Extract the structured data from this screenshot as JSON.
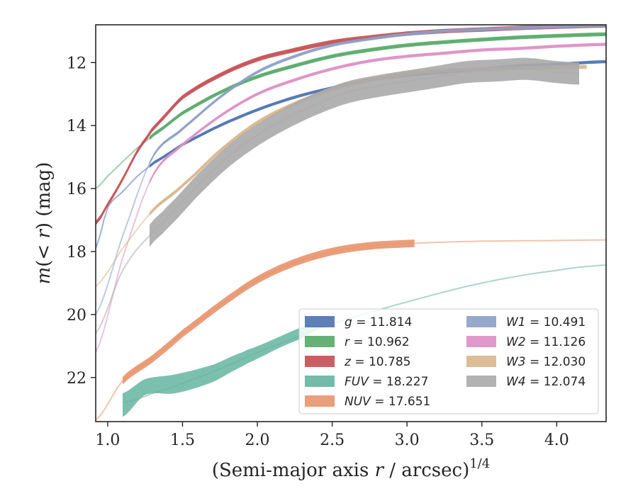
{
  "chart_data": {
    "type": "line",
    "title": "",
    "xlabel": "(Semi-major axis r / arcsec)",
    "xlabel_exponent": "1/4",
    "ylabel": "m(< r) (mag)",
    "xlim": [
      0.92,
      4.33
    ],
    "ylim": [
      23.4,
      10.8
    ],
    "y_inverted": true,
    "x_ticks": [
      1.0,
      1.5,
      2.0,
      2.5,
      3.0,
      3.5,
      4.0
    ],
    "x_tick_labels": [
      "1.0",
      "1.5",
      "2.0",
      "2.5",
      "3.0",
      "3.5",
      "4.0"
    ],
    "y_ticks": [
      12,
      14,
      16,
      18,
      20,
      22
    ],
    "y_tick_labels": [
      "12",
      "14",
      "16",
      "18",
      "20",
      "22"
    ],
    "grid": false,
    "legend_position": "lower-right",
    "legend_columns": 2,
    "series": [
      {
        "band": "g",
        "value": "11.814",
        "color": "#4c72b0",
        "data": {
          "x": [
            0.92,
            1.0,
            1.1,
            1.2,
            1.3,
            1.5,
            1.75,
            2.0,
            2.25,
            2.5,
            2.75,
            3.0,
            3.25,
            3.5,
            3.75,
            4.0,
            4.33
          ],
          "y": [
            17.9,
            16.6,
            16.1,
            15.6,
            15.2,
            14.6,
            14.0,
            13.5,
            13.1,
            12.8,
            12.55,
            12.4,
            12.3,
            12.2,
            12.1,
            12.05,
            11.97
          ]
        },
        "band_range": [
          1.28,
          4.33
        ],
        "band_width": 0.05
      },
      {
        "band": "r",
        "value": "10.962",
        "color": "#55a868",
        "data": {
          "x": [
            0.92,
            1.0,
            1.1,
            1.2,
            1.3,
            1.5,
            1.75,
            2.0,
            2.25,
            2.5,
            2.75,
            3.0,
            3.25,
            3.5,
            3.75,
            4.0,
            4.33
          ],
          "y": [
            16.0,
            15.6,
            15.15,
            14.7,
            14.3,
            13.6,
            12.95,
            12.45,
            12.1,
            11.8,
            11.6,
            11.45,
            11.35,
            11.27,
            11.2,
            11.15,
            11.1
          ]
        },
        "band_range": [
          1.28,
          4.33
        ],
        "band_width": 0.06
      },
      {
        "band": "z",
        "value": "10.785",
        "color": "#c44e52",
        "data": {
          "x": [
            0.92,
            1.0,
            1.1,
            1.2,
            1.3,
            1.5,
            1.75,
            2.0,
            2.25,
            2.5,
            2.75,
            3.0,
            3.25,
            3.5,
            3.75,
            4.0,
            4.33
          ],
          "y": [
            17.1,
            16.5,
            15.7,
            14.8,
            14.1,
            13.1,
            12.4,
            11.9,
            11.6,
            11.35,
            11.2,
            11.08,
            11.0,
            10.95,
            10.9,
            10.86,
            10.82
          ]
        },
        "band_range": [
          0.92,
          4.33
        ],
        "band_width": 0.07
      },
      {
        "band": "FUV",
        "value": "18.227",
        "color": "#64b5a0",
        "data": {
          "x": [
            1.1,
            1.3,
            1.6,
            2.0,
            2.5,
            3.0,
            3.5,
            4.0,
            4.33
          ],
          "y": [
            22.8,
            22.5,
            22.0,
            21.2,
            20.3,
            19.6,
            19.0,
            18.6,
            18.43
          ]
        },
        "band_range": [
          1.1,
          2.42
        ],
        "band_upper": [
          22.5,
          22.05,
          21.9,
          21.6,
          21.2,
          21.0,
          20.7,
          20.4,
          20.25
        ],
        "band_lower": [
          23.25,
          22.55,
          22.5,
          22.15,
          21.65,
          21.4,
          21.05,
          20.75,
          20.45
        ],
        "band_x": [
          1.1,
          1.25,
          1.45,
          1.7,
          1.9,
          2.0,
          2.15,
          2.3,
          2.42
        ]
      },
      {
        "band": "NUV",
        "value": "17.651",
        "color": "#e8936b",
        "data": {
          "x": [
            0.92,
            1.1,
            1.3,
            1.5,
            1.75,
            2.0,
            2.25,
            2.5,
            2.75,
            3.0,
            3.25,
            3.5,
            4.0,
            4.33
          ],
          "y": [
            23.35,
            22.1,
            21.4,
            20.6,
            19.7,
            18.9,
            18.35,
            18.0,
            17.82,
            17.75,
            17.7,
            17.67,
            17.65,
            17.63
          ]
        },
        "band_range": [
          1.1,
          3.05
        ],
        "band_width": 0.12
      },
      {
        "band": "W1",
        "value": "10.491",
        "color": "#8c9fc6",
        "data": {
          "x": [
            0.92,
            1.1,
            1.3,
            1.5,
            1.75,
            2.0,
            2.25,
            2.5,
            2.75,
            3.0,
            3.25,
            3.5,
            3.75,
            4.0,
            4.33
          ],
          "y": [
            20.0,
            17.5,
            15.0,
            14.1,
            13.1,
            12.3,
            11.8,
            11.45,
            11.25,
            11.1,
            11.0,
            10.95,
            10.9,
            10.86,
            10.82
          ]
        },
        "band_range": [
          1.28,
          4.33
        ],
        "band_width": 0.05
      },
      {
        "band": "W2",
        "value": "11.126",
        "color": "#dd8fc4",
        "data": {
          "x": [
            0.92,
            1.1,
            1.3,
            1.5,
            1.75,
            2.0,
            2.25,
            2.5,
            2.75,
            3.0,
            3.25,
            3.5,
            3.75,
            4.0,
            4.33
          ],
          "y": [
            21.2,
            18.2,
            15.6,
            14.6,
            13.7,
            13.0,
            12.55,
            12.2,
            11.95,
            11.8,
            11.7,
            11.6,
            11.55,
            11.48,
            11.42
          ]
        },
        "band_range": [
          1.28,
          4.33
        ],
        "band_width": 0.05
      },
      {
        "band": "W3",
        "value": "12.030",
        "color": "#d9b68c",
        "data": {
          "x": [
            0.92,
            1.1,
            1.3,
            1.5,
            1.75,
            2.0,
            2.25,
            2.5,
            2.75,
            3.0,
            3.25,
            3.5,
            3.75,
            4.0,
            4.2
          ],
          "y": [
            19.1,
            17.9,
            16.7,
            15.9,
            14.8,
            13.9,
            13.3,
            12.85,
            12.55,
            12.35,
            12.25,
            12.2,
            12.17,
            12.15,
            12.14
          ]
        },
        "band_range": [
          1.28,
          4.2
        ],
        "band_width": 0.06
      },
      {
        "band": "W4",
        "value": "12.074",
        "color": "#aaaaaa",
        "data": {
          "x": [
            0.92,
            1.1,
            1.28,
            1.4,
            1.6,
            1.8,
            2.0,
            2.2,
            2.4,
            2.6,
            2.8,
            3.0,
            3.2,
            3.4,
            3.6,
            3.8,
            4.0,
            4.15
          ],
          "y": [
            20.6,
            18.6,
            17.5,
            16.9,
            15.9,
            15.0,
            14.3,
            13.75,
            13.3,
            12.95,
            12.75,
            12.6,
            12.45,
            12.3,
            12.25,
            12.2,
            12.3,
            12.35
          ]
        },
        "band_range": [
          1.28,
          4.15
        ],
        "band_width": 0.35
      }
    ]
  },
  "legend": [
    {
      "band": "g",
      "value": "11.814"
    },
    {
      "band": "r",
      "value": "10.962"
    },
    {
      "band": "z",
      "value": "10.785"
    },
    {
      "band": "FUV",
      "value": "18.227"
    },
    {
      "band": "NUV",
      "value": "17.651"
    },
    {
      "band": "W1",
      "value": "10.491"
    },
    {
      "band": "W2",
      "value": "11.126"
    },
    {
      "band": "W3",
      "value": "12.030"
    },
    {
      "band": "W4",
      "value": "12.074"
    }
  ],
  "colors": {
    "axis": "#262626",
    "legend_border": "#cccccc",
    "background": "#ffffff"
  }
}
